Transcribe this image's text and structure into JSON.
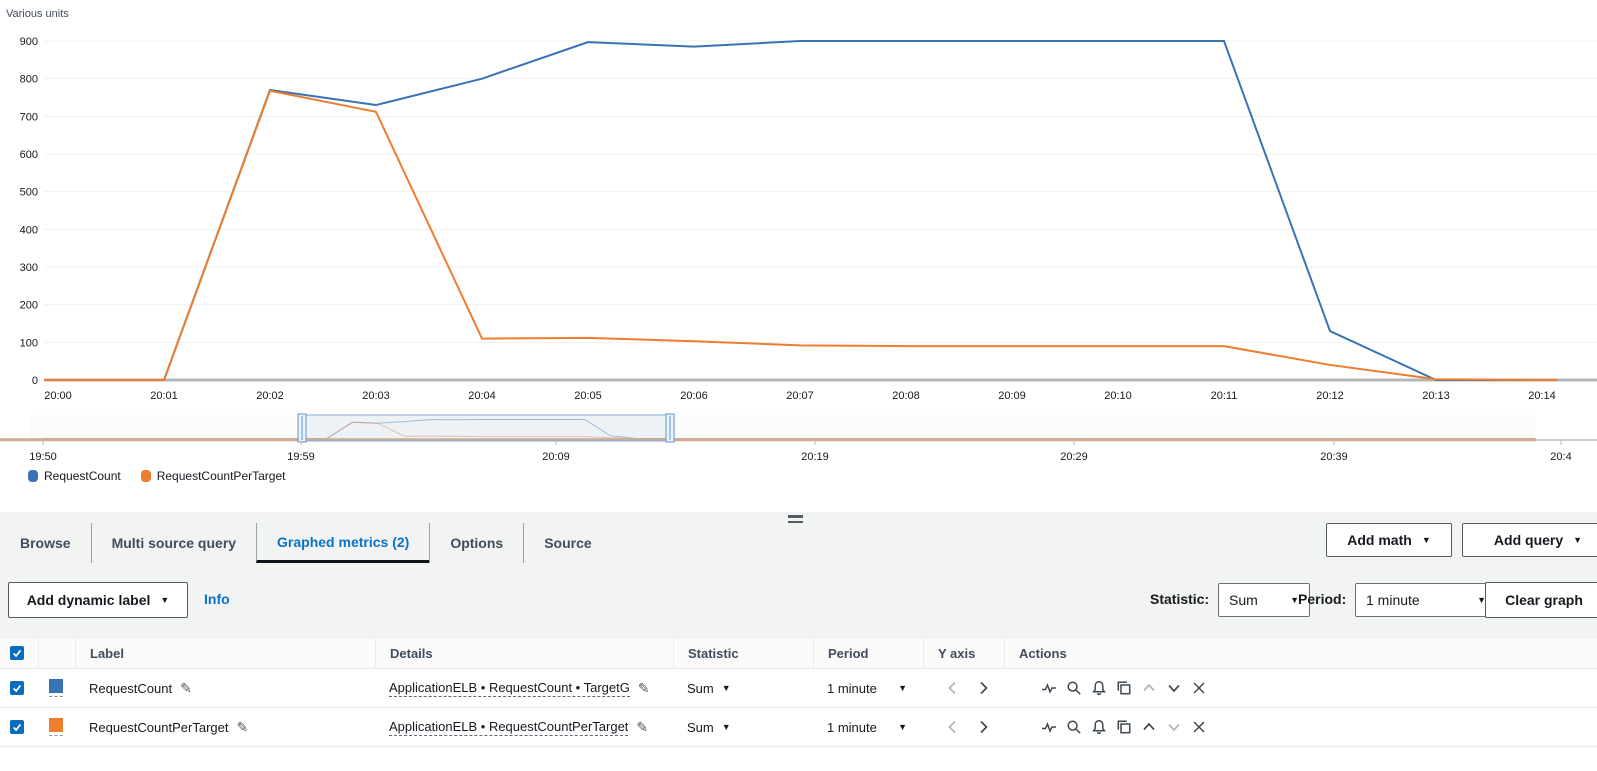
{
  "chart": {
    "units_label": "Various units"
  },
  "chart_data": {
    "type": "line",
    "title": "",
    "ylabel": "Various units",
    "ylim": [
      0,
      900
    ],
    "grid": "horizontal",
    "legend_position": "bottom-left",
    "y_ticks": [
      900,
      800,
      700,
      600,
      500,
      400,
      300,
      200,
      100,
      0
    ],
    "x": [
      "20:00",
      "20:01",
      "20:02",
      "20:03",
      "20:04",
      "20:05",
      "20:06",
      "20:07",
      "20:08",
      "20:09",
      "20:10",
      "20:11",
      "20:12",
      "20:13",
      "20:14"
    ],
    "series": [
      {
        "name": "RequestCount",
        "color": "#3a73b4",
        "values": [
          0,
          0,
          770,
          730,
          800,
          897,
          885,
          900,
          900,
          900,
          900,
          900,
          130,
          0,
          0
        ]
      },
      {
        "name": "RequestCountPerTarget",
        "color": "#ee7d2e",
        "values": [
          0,
          0,
          768,
          712,
          110,
          112,
          103,
          92,
          90,
          90,
          90,
          90,
          40,
          2,
          0
        ]
      }
    ]
  },
  "minimap": {
    "x_labels": [
      "19:50",
      "19:59",
      "20:09",
      "20:19",
      "20:29",
      "20:39",
      "20:4"
    ]
  },
  "tabs": {
    "items": [
      {
        "label": "Browse"
      },
      {
        "label": "Multi source query"
      },
      {
        "label": "Graphed metrics (2)"
      },
      {
        "label": "Options"
      },
      {
        "label": "Source"
      }
    ]
  },
  "buttons": {
    "add_math": "Add math",
    "add_query": "Add query",
    "add_dynamic_label": "Add dynamic label",
    "clear_graph": "Clear graph",
    "info": "Info"
  },
  "toolbar": {
    "statistic_label": "Statistic:",
    "statistic_value": "Sum",
    "period_label": "Period:",
    "period_value": "1 minute"
  },
  "table": {
    "columns": [
      "Label",
      "Details",
      "Statistic",
      "Period",
      "Y axis",
      "Actions"
    ],
    "rows": [
      {
        "checked": true,
        "color": "#3a73b4",
        "label": "RequestCount",
        "details": "ApplicationELB • RequestCount • TargetG",
        "statistic": "Sum",
        "period": "1 minute"
      },
      {
        "checked": true,
        "color": "#ee7d2e",
        "label": "RequestCountPerTarget",
        "details": "ApplicationELB • RequestCountPerTarget",
        "statistic": "Sum",
        "period": "1 minute"
      }
    ]
  }
}
